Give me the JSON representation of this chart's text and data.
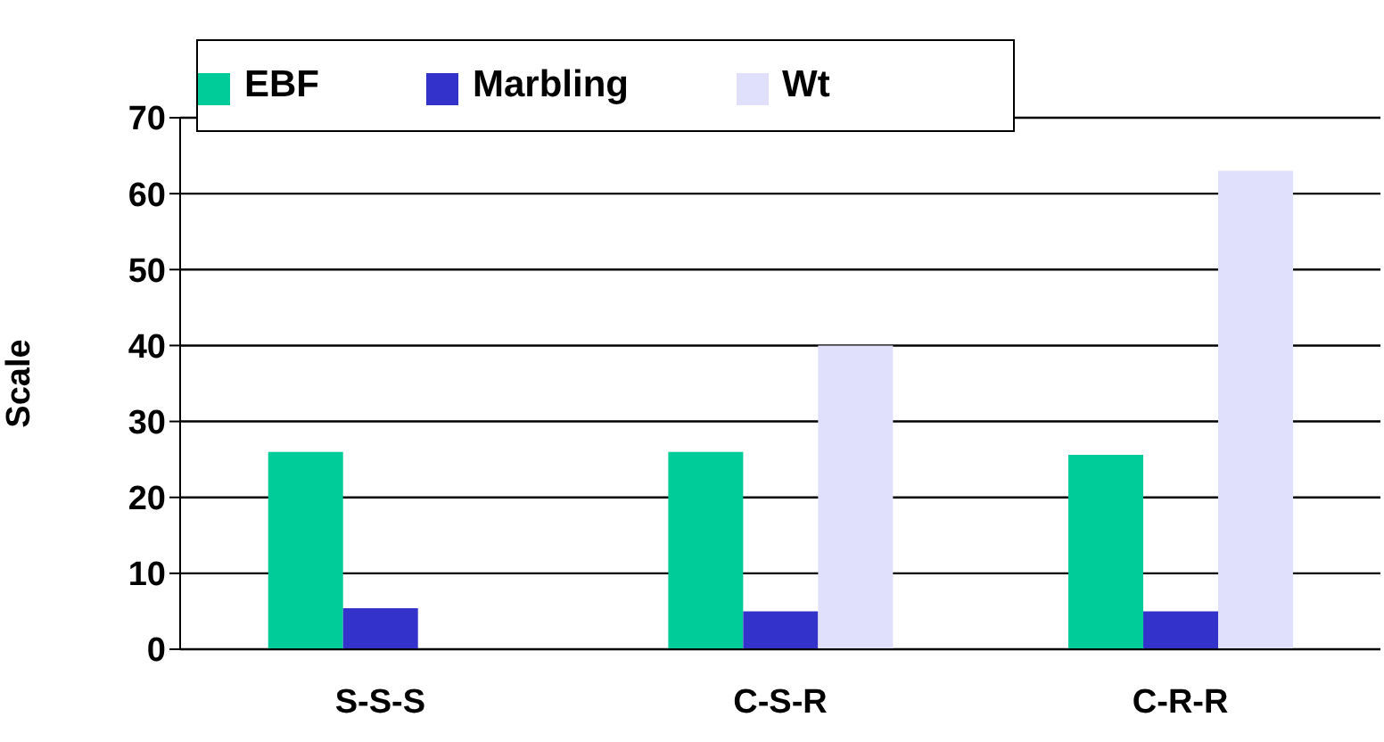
{
  "chart_data": {
    "type": "bar",
    "ylabel": "Scale",
    "categories": [
      "S-S-S",
      "C-S-R",
      "C-R-R"
    ],
    "series": [
      {
        "name": "EBF",
        "color": "#00cc99",
        "values": [
          26,
          26,
          25.6
        ]
      },
      {
        "name": "Marbling",
        "color": "#3333cc",
        "values": [
          5.4,
          5,
          5
        ]
      },
      {
        "name": "Wt",
        "color": "#e0e0fc",
        "values": [
          null,
          40,
          63
        ]
      }
    ],
    "ylim": [
      0,
      70
    ],
    "yticks": [
      0,
      10,
      20,
      30,
      40,
      50,
      60,
      70
    ],
    "grid": "y",
    "legend": "top"
  }
}
